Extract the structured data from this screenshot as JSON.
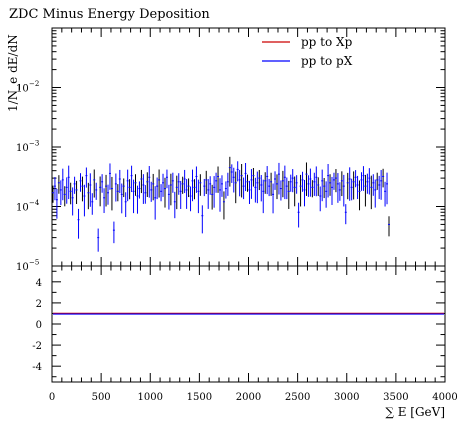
{
  "chart_data": [
    {
      "type": "scatter",
      "title": "ZDC Minus Energy Deposition",
      "ylabel": "1/N_e dE/dN",
      "xlabel": "∑ E [GeV]",
      "xlim": [
        0,
        4000
      ],
      "ylim": [
        1e-05,
        0.1
      ],
      "yscale": "log",
      "xticks": [
        "0",
        "500",
        "1000",
        "1500",
        "2000",
        "2500",
        "3000",
        "3500",
        "4000"
      ],
      "yticks": [
        {
          "value": 0.01,
          "base": "10",
          "exp": "−2"
        },
        {
          "value": 0.001,
          "base": "10",
          "exp": "−3"
        },
        {
          "value": 0.0001,
          "base": "10",
          "exp": "−4"
        },
        {
          "value": 1e-05,
          "base": "10",
          "exp": "−5"
        }
      ],
      "legend_position": "top-right",
      "series": [
        {
          "name": "pp to Xp",
          "color": "#cc0000"
        },
        {
          "name": "pp to pX",
          "color": "#0000ff"
        }
      ],
      "bin_width": 20,
      "x_start": 10,
      "y_values": [
        0.00017,
        0.00022,
        0.00013,
        0.00025,
        0.00019,
        0.00028,
        0.00016,
        0.00021,
        0.00031,
        0.00018,
        0.00014,
        0.00024,
        0.00019,
        6e-05,
        0.00027,
        0.00022,
        0.00015,
        0.00033,
        0.00017,
        0.00023,
        0.00012,
        0.00028,
        0.00019,
        3e-05,
        0.00021,
        0.00026,
        0.00014,
        0.00022,
        0.00017,
        0.00036,
        0.0002,
        4e-05,
        0.00024,
        0.00018,
        0.00029,
        0.00016,
        0.00022,
        0.00012,
        0.00027,
        0.00021,
        0.00033,
        0.00018,
        0.00025,
        0.00015,
        0.0002,
        0.00029,
        0.00023,
        0.00017,
        0.00026,
        0.00031,
        0.00019,
        0.00024,
        0.00014,
        0.00022,
        0.00028,
        0.00018,
        0.00025,
        0.0002,
        0.00031,
        0.00016,
        0.00023,
        0.00027,
        0.00012,
        0.00021,
        0.00026,
        0.00018,
        0.00024,
        0.00029,
        0.00019,
        0.00022,
        0.00015,
        0.00027,
        0.00021,
        0.00032,
        0.00018,
        0.00025,
        7e-05,
        0.00022,
        0.00028,
        0.00019,
        0.00024,
        0.00016,
        0.00021,
        0.00027,
        0.00032,
        0.00019,
        0.00024,
        0.00012,
        0.0002,
        0.00026,
        0.00045,
        0.00038,
        0.00031,
        0.00025,
        0.00042,
        0.00028,
        0.00033,
        0.00022,
        0.00036,
        0.00026,
        0.00019,
        0.00028,
        0.00033,
        0.00021,
        0.00025,
        0.0003,
        0.00023,
        0.00018,
        0.00027,
        0.00032,
        0.00022,
        0.00026,
        0.00016,
        0.00029,
        0.00024,
        0.00035,
        0.0002,
        0.00027,
        0.00031,
        0.00022,
        0.00018,
        0.00026,
        0.0003,
        0.00021,
        0.00025,
        8e-05,
        0.00022,
        0.00028,
        0.00019,
        0.00035,
        0.00024,
        0.00029,
        0.00021,
        0.00026,
        0.00031,
        0.00023,
        0.00015,
        0.00027,
        0.00022,
        0.00018,
        0.00033,
        0.00025,
        0.00021,
        0.00028,
        0.0003,
        0.00024,
        0.00019,
        0.00027,
        0.00022,
        8e-05,
        0.00025,
        0.00029,
        0.00021,
        0.00026,
        0.00031,
        0.00023,
        0.00018,
        0.00028,
        0.00033,
        0.00022,
        0.00026,
        0.0003,
        0.00021,
        0.00025,
        0.00019,
        0.00028,
        0.00023,
        0.00027,
        0.00032,
        0.00018,
        0.00024,
        5e-05
      ],
      "ratio": {
        "ylim": [
          -5.5,
          5.5
        ],
        "yticks": [
          4,
          2,
          0,
          -2,
          -4
        ],
        "ytick_labels": [
          "4",
          "2",
          "0",
          "-2",
          "-4"
        ],
        "value": 1
      }
    }
  ]
}
